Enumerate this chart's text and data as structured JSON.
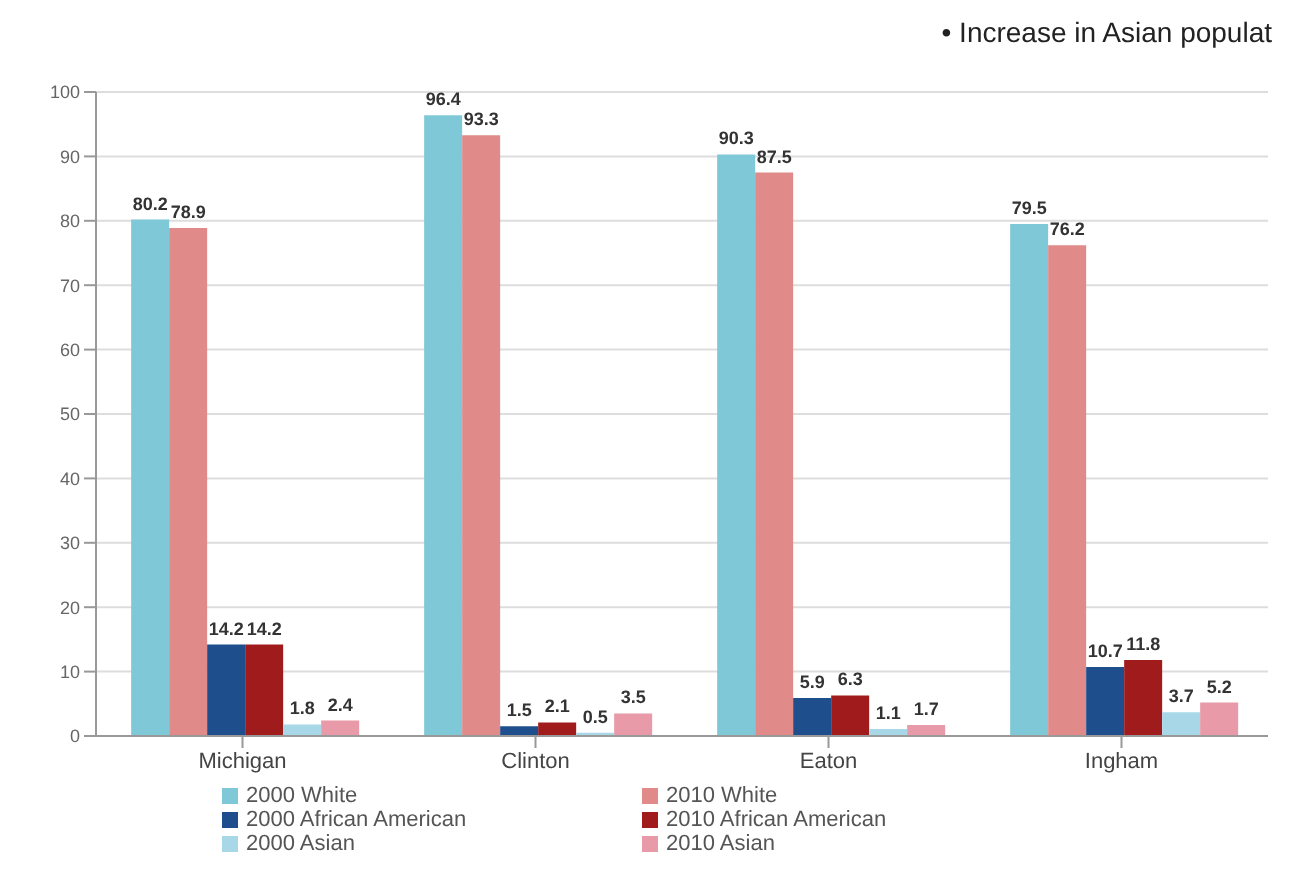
{
  "chart_data": {
    "type": "bar",
    "categories": [
      "Michigan",
      "Clinton",
      "Eaton",
      "Ingham"
    ],
    "series": [
      {
        "name": "2000 White",
        "color": "#7ec8d8",
        "values": [
          80.2,
          96.4,
          90.3,
          79.5
        ]
      },
      {
        "name": "2010 White",
        "color": "#e08a8a",
        "values": [
          78.9,
          93.3,
          87.5,
          76.2
        ]
      },
      {
        "name": "2000 African American",
        "color": "#1f4e8c",
        "values": [
          14.2,
          1.5,
          5.9,
          10.7
        ]
      },
      {
        "name": "2010 African American",
        "color": "#a01c1c",
        "values": [
          14.2,
          2.1,
          6.3,
          11.8
        ]
      },
      {
        "name": "2000 Asian",
        "color": "#a8d8e8",
        "values": [
          1.8,
          0.5,
          1.1,
          3.7
        ]
      },
      {
        "name": "2010 Asian",
        "color": "#e89aa8",
        "values": [
          2.4,
          3.5,
          1.7,
          5.2
        ]
      }
    ],
    "ylim": [
      0,
      100
    ],
    "yticks": [
      0,
      10,
      20,
      30,
      40,
      50,
      60,
      70,
      80,
      90,
      100
    ],
    "grid": "y",
    "legend": "bottom",
    "data_labels": true,
    "annotations": [
      "•   Increase in Asian populat"
    ]
  }
}
